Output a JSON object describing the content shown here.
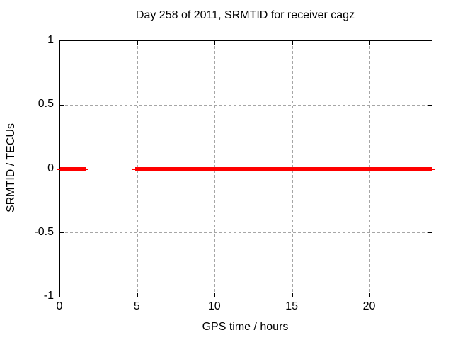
{
  "chart_data": {
    "type": "line",
    "title": "Day 258 of 2011, SRMTID for receiver cagz",
    "xlabel": "GPS time / hours",
    "ylabel": "SRMTID / TECUs",
    "xlim": [
      0,
      24
    ],
    "ylim": [
      -1,
      1
    ],
    "xticks": [
      {
        "value": 0,
        "label": "0"
      },
      {
        "value": 5,
        "label": "5"
      },
      {
        "value": 10,
        "label": "10"
      },
      {
        "value": 15,
        "label": "15"
      },
      {
        "value": 20,
        "label": "20"
      }
    ],
    "yticks": [
      {
        "value": 1,
        "label": "1"
      },
      {
        "value": 0.5,
        "label": "0.5"
      },
      {
        "value": 0,
        "label": "0"
      },
      {
        "value": -0.5,
        "label": "-0.5"
      },
      {
        "value": -1,
        "label": "-1"
      }
    ],
    "grid": true,
    "grid_x": [
      5,
      10,
      15,
      20
    ],
    "grid_y": [
      0.5,
      0,
      -0.5
    ],
    "legend": "none",
    "colors": {
      "line": "#ff0000",
      "grid": "#a6a6a6",
      "border": "#000000",
      "background": "#ffffff",
      "text": "#000000"
    },
    "series": [
      {
        "name": "SRMTID",
        "color": "#ff0000",
        "y": 0,
        "segments": [
          {
            "x_start": 0,
            "x_end": 1.65
          },
          {
            "x_start": 4.85,
            "x_end": 24
          }
        ]
      }
    ]
  }
}
